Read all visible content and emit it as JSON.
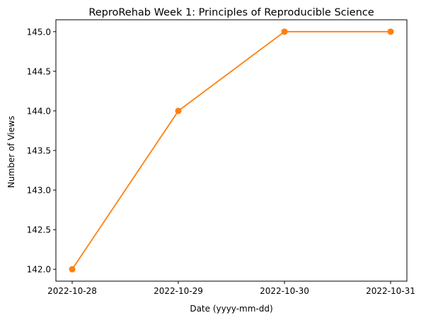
{
  "chart_data": {
    "type": "line",
    "title": "ReproRehab Week 1: Principles of Reproducible Science",
    "xlabel": "Date (yyyy-mm-dd)",
    "ylabel": "Number of Views",
    "categories": [
      "2022-10-28",
      "2022-10-29",
      "2022-10-30",
      "2022-10-31"
    ],
    "series": [
      {
        "values": [
          142,
          144,
          145,
          145
        ],
        "color": "#ff7f0e",
        "marker": "circle"
      }
    ],
    "y_ticks": [
      "142.0",
      "142.5",
      "143.0",
      "143.5",
      "144.0",
      "144.5",
      "145.0"
    ],
    "ylim": [
      141.85,
      145.15
    ],
    "grid": false,
    "legend": "none"
  }
}
